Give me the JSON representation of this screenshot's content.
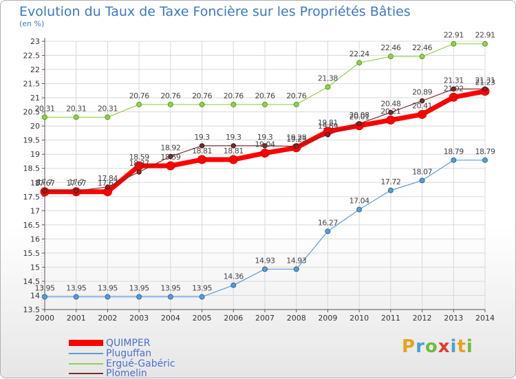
{
  "header": {
    "title": "Evolution du Taux de Taxe Foncière sur les Propriétés Bâties",
    "unit": "(en %)"
  },
  "brand": {
    "text": "Proxiti",
    "letters": [
      {
        "ch": "P",
        "color": "#e8a21a"
      },
      {
        "ch": "r",
        "color": "#4aa0d8"
      },
      {
        "ch": "o",
        "color": "#6abf3a"
      },
      {
        "ch": "x",
        "color": "#e53a2a"
      },
      {
        "ch": "i",
        "color": "#4aa0d8"
      },
      {
        "ch": "t",
        "color": "#e8a21a"
      },
      {
        "ch": "i",
        "color": "#6abf3a"
      }
    ]
  },
  "chart_data": {
    "type": "line",
    "title": "Evolution du Taux de Taxe Foncière sur les Propriétés Bâties",
    "ylabel": "(en %)",
    "xlabel": "",
    "x": [
      "2000",
      "2001",
      "2002",
      "2003",
      "2004",
      "2005",
      "2006",
      "2007",
      "2008",
      "2009",
      "2010",
      "2011",
      "2012",
      "2013",
      "2014"
    ],
    "ylim": [
      13.5,
      23
    ],
    "yticks": [
      "13.5",
      "14",
      "14.5",
      "15",
      "15.5",
      "16",
      "16.5",
      "17",
      "17.5",
      "18",
      "18.5",
      "19",
      "19.5",
      "20",
      "20.5",
      "21",
      "21.5",
      "22",
      "22.5",
      "23"
    ],
    "grid": true,
    "legend_position": "bottom-left",
    "series": [
      {
        "name": "QUIMPER",
        "color": "#ff0000",
        "values": [
          17.67,
          17.67,
          17.67,
          18.59,
          18.59,
          18.81,
          18.81,
          19.04,
          19.23,
          19.81,
          20.01,
          20.21,
          20.41,
          21.02,
          21.23
        ]
      },
      {
        "name": "Pluguffan",
        "color": "#5b9bd5",
        "values": [
          13.95,
          13.95,
          13.95,
          13.95,
          13.95,
          13.95,
          14.36,
          14.93,
          14.93,
          16.27,
          17.04,
          17.72,
          18.07,
          18.79,
          18.79
        ]
      },
      {
        "name": "Ergué-Gabéric",
        "color": "#90d050",
        "values": [
          20.31,
          20.31,
          20.31,
          20.76,
          20.76,
          20.76,
          20.76,
          20.76,
          20.76,
          21.38,
          22.24,
          22.46,
          22.46,
          22.91,
          22.91
        ]
      },
      {
        "name": "Plomelin",
        "color": "#7b2c2c",
        "values": [
          17.7,
          17.7,
          17.84,
          18.37,
          18.92,
          19.3,
          19.3,
          19.3,
          19.28,
          19.69,
          20.08,
          20.48,
          20.89,
          21.31,
          21.31
        ]
      }
    ]
  }
}
